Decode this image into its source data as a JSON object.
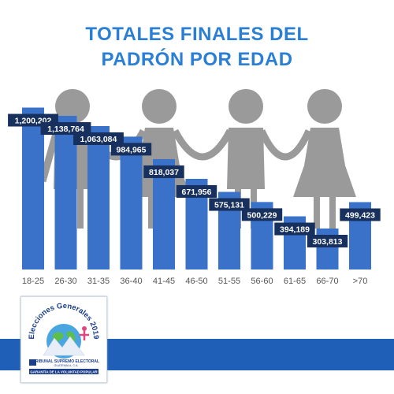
{
  "title_line1": "TOTALES FINALES DEL",
  "title_line2": "PADRÓN POR EDAD",
  "colors": {
    "bar": "#3a72c9",
    "label_bg": "#17305e",
    "label_text": "#ffffff",
    "title": "#2a7fd4",
    "silhouette": "#9a9a9a",
    "band": "#1f5fb8"
  },
  "chart_data": {
    "type": "bar",
    "categories": [
      "18-25",
      "26-30",
      "31-35",
      "36-40",
      "41-45",
      "46-50",
      "51-55",
      "56-60",
      "61-65",
      "66-70",
      ">70"
    ],
    "values": [
      1200202,
      1138764,
      1063084,
      984965,
      818037,
      671956,
      575131,
      500229,
      394189,
      303813,
      499423
    ],
    "data_labels": [
      "1,200,202",
      "1,138,764",
      "1,063,084",
      "984,965",
      "818,037",
      "671,956",
      "575,131",
      "500,229",
      "394,189",
      "303,813",
      "499,423"
    ],
    "title": "TOTALES FINALES DEL PADRÓN POR EDAD",
    "xlabel": "",
    "ylabel": "",
    "ylim": [
      0,
      1250000
    ],
    "grid": false
  },
  "logo": {
    "arc_text": "Elecciones Generales 2019",
    "org_name": "TRIBUNAL SUPREMO ELECTORAL",
    "org_sub": "GUATEMALA, C.A.",
    "motto": "GARANTÍA DE LA VOLUNTAD POPULAR",
    "short": "TSE"
  }
}
